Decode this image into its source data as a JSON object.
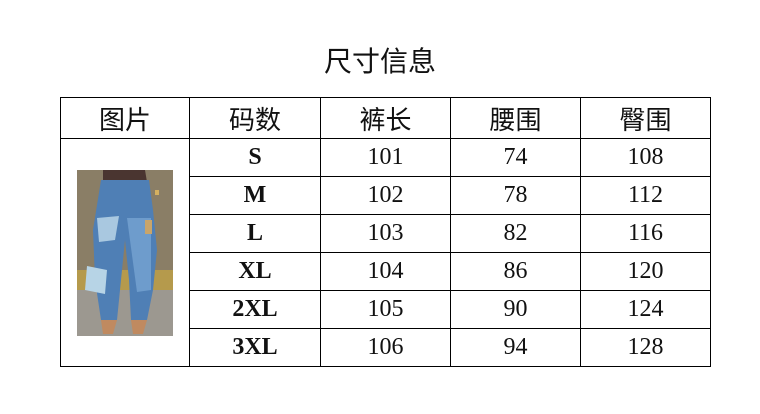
{
  "title": "尺寸信息",
  "headers": [
    "图片",
    "码数",
    "裤长",
    "腰围",
    "臀围"
  ],
  "rows": [
    {
      "size": "S",
      "length": "101",
      "waist": "74",
      "hip": "108"
    },
    {
      "size": "M",
      "length": "102",
      "waist": "78",
      "hip": "112"
    },
    {
      "size": "L",
      "length": "103",
      "waist": "82",
      "hip": "116"
    },
    {
      "size": "XL",
      "length": "104",
      "waist": "86",
      "hip": "120"
    },
    {
      "size": "2XL",
      "length": "105",
      "waist": "90",
      "hip": "124"
    },
    {
      "size": "3XL",
      "length": "106",
      "waist": "94",
      "hip": "128"
    }
  ],
  "image": {
    "subject": "patchwork-denim-jeans"
  }
}
